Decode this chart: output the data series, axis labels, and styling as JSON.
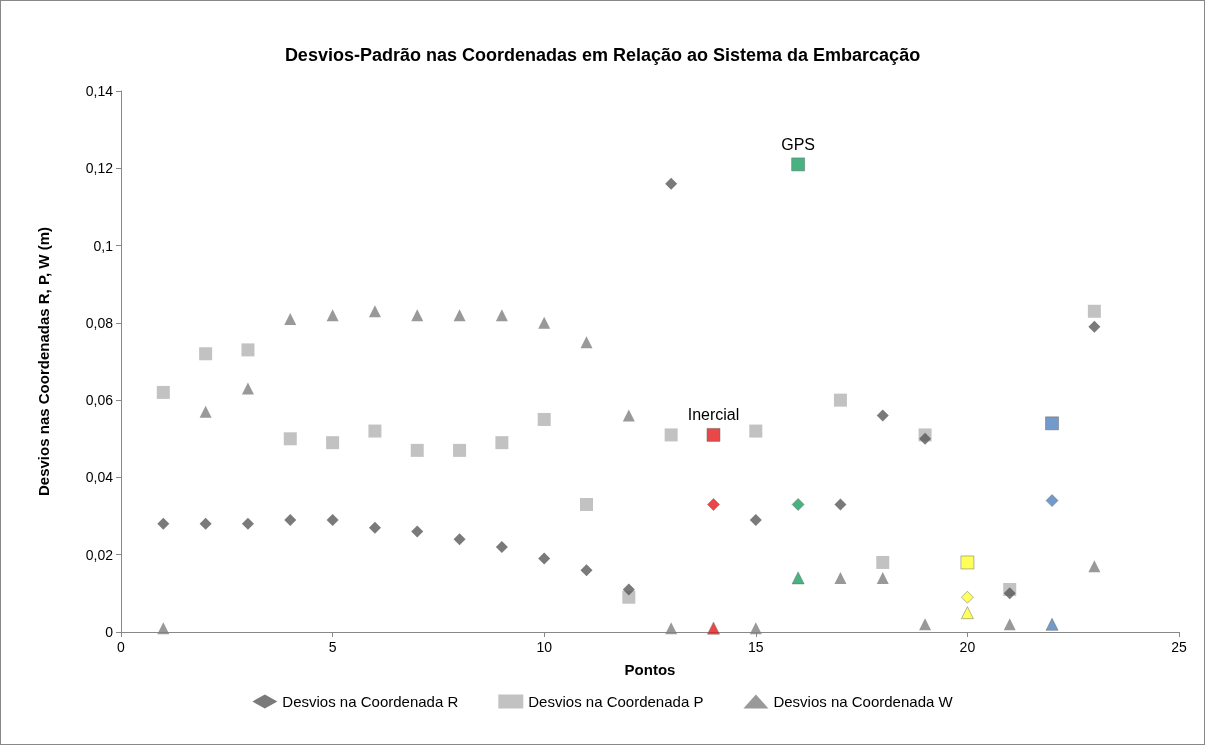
{
  "chart_data": {
    "type": "scatter",
    "title": "Desvios-Padrão nas Coordenadas em Relação ao Sistema da Embarcação",
    "xlabel": "Pontos",
    "ylabel": "Desvios nas Coordenadas R, P, W (m)",
    "xlim": [
      0,
      25
    ],
    "xticks": [
      0,
      5,
      10,
      15,
      20,
      25
    ],
    "ylim": [
      0,
      0.14
    ],
    "yticks": [
      0,
      {
        "value": 0.02,
        "label": "0,02"
      },
      {
        "value": 0.04,
        "label": "0,04"
      },
      {
        "value": 0.06,
        "label": "0,06"
      },
      {
        "value": 0.08,
        "label": "0,08"
      },
      {
        "value": 0.1,
        "label": "0,1"
      },
      {
        "value": 0.12,
        "label": "0,12"
      },
      {
        "value": 0.14,
        "label": "0,14"
      }
    ],
    "grid": false,
    "legend": "bottom",
    "annotations": [
      {
        "text": "GPS",
        "x": 16,
        "y": 0.121
      },
      {
        "text": "Inercial",
        "x": 14,
        "y": 0.051
      }
    ],
    "series": [
      {
        "name": "Desvios na Coordenada R",
        "marker": "diamond",
        "color": "#595959",
        "x": [
          1,
          2,
          3,
          4,
          5,
          6,
          7,
          8,
          9,
          10,
          11,
          12,
          13,
          14,
          15,
          16,
          17,
          18,
          19,
          20,
          21,
          22,
          23
        ],
        "values": [
          0.028,
          0.028,
          0.028,
          0.029,
          0.029,
          0.027,
          0.026,
          0.024,
          0.022,
          0.019,
          0.016,
          0.011,
          0.116,
          0.033,
          0.029,
          0.033,
          0.033,
          0.056,
          0.05,
          0.009,
          0.01,
          0.034,
          0.079
        ],
        "colors": [
          "#595959",
          "#595959",
          "#595959",
          "#595959",
          "#595959",
          "#595959",
          "#595959",
          "#595959",
          "#595959",
          "#595959",
          "#595959",
          "#595959",
          "#595959",
          "#e31a1c",
          "#595959",
          "#1aa060",
          "#595959",
          "#595959",
          "#595959",
          "#ffff33",
          "#595959",
          "#4f81bd",
          "#595959"
        ]
      },
      {
        "name": "Desvios na Coordenada P",
        "marker": "square",
        "color": "#b3b3b3",
        "x": [
          1,
          2,
          3,
          4,
          5,
          6,
          7,
          8,
          9,
          10,
          11,
          12,
          13,
          14,
          15,
          16,
          17,
          18,
          19,
          20,
          21,
          22,
          23
        ],
        "values": [
          0.062,
          0.072,
          0.073,
          0.05,
          0.049,
          0.052,
          0.047,
          0.047,
          0.049,
          0.055,
          0.033,
          0.009,
          0.051,
          0.051,
          0.052,
          0.121,
          0.06,
          0.018,
          0.051,
          0.018,
          0.011,
          0.054,
          0.083
        ],
        "colors": [
          "#b3b3b3",
          "#b3b3b3",
          "#b3b3b3",
          "#b3b3b3",
          "#b3b3b3",
          "#b3b3b3",
          "#b3b3b3",
          "#b3b3b3",
          "#b3b3b3",
          "#b3b3b3",
          "#b3b3b3",
          "#b3b3b3",
          "#b3b3b3",
          "#e31a1c",
          "#b3b3b3",
          "#1aa060",
          "#b3b3b3",
          "#b3b3b3",
          "#b3b3b3",
          "#ffff33",
          "#b3b3b3",
          "#4f81bd",
          "#b3b3b3"
        ]
      },
      {
        "name": "Desvios na Coordenada W",
        "marker": "triangle",
        "color": "#808080",
        "x": [
          1,
          2,
          3,
          4,
          5,
          6,
          7,
          8,
          9,
          10,
          11,
          12,
          13,
          14,
          15,
          16,
          17,
          18,
          19,
          20,
          21,
          22,
          23
        ],
        "values": [
          0.001,
          0.057,
          0.063,
          0.081,
          0.082,
          0.083,
          0.082,
          0.082,
          0.082,
          0.08,
          0.075,
          0.056,
          0.001,
          0.001,
          0.001,
          0.014,
          0.014,
          0.014,
          0.002,
          0.005,
          0.002,
          0.002,
          0.017
        ],
        "colors": [
          "#808080",
          "#808080",
          "#808080",
          "#808080",
          "#808080",
          "#808080",
          "#808080",
          "#808080",
          "#808080",
          "#808080",
          "#808080",
          "#808080",
          "#808080",
          "#e31a1c",
          "#808080",
          "#1aa060",
          "#808080",
          "#808080",
          "#808080",
          "#ffff33",
          "#808080",
          "#4f81bd",
          "#808080"
        ]
      }
    ]
  }
}
